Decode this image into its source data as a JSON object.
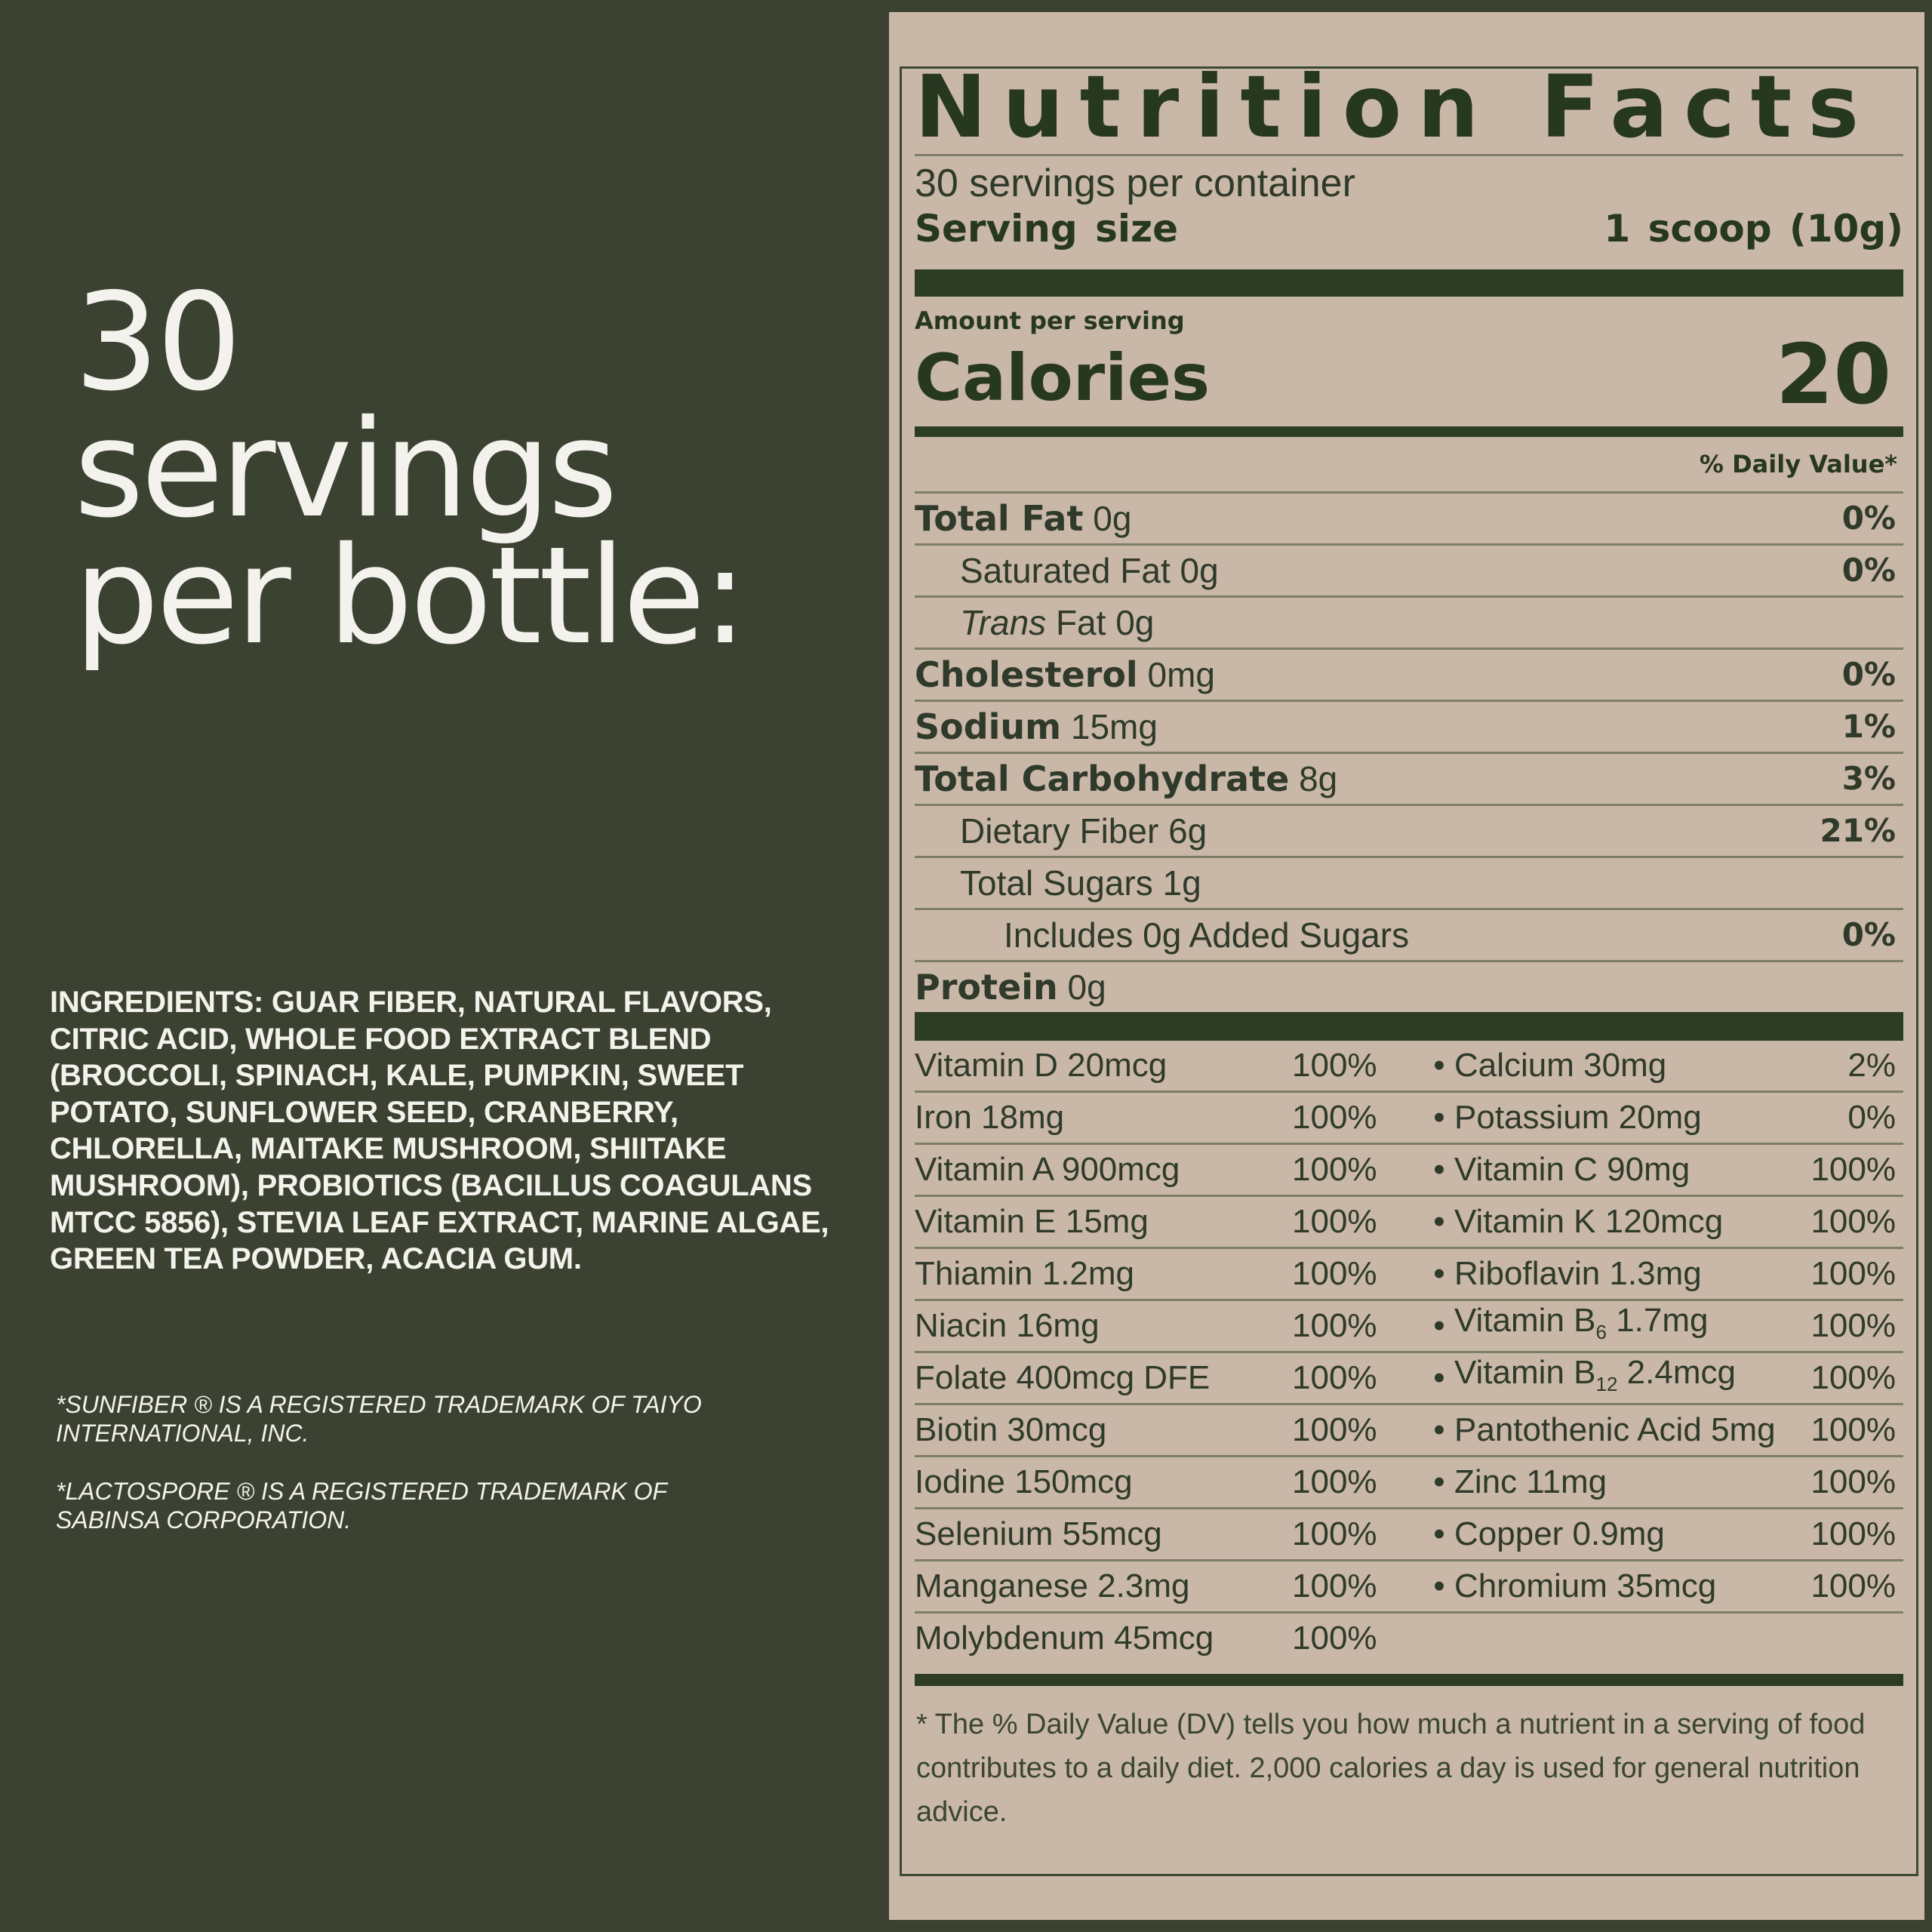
{
  "headline": [
    "30",
    "servings",
    "per bottle:"
  ],
  "ingredients": "INGREDIENTS: GUAR FIBER, NATURAL FLAVORS, CITRIC ACID, WHOLE FOOD EXTRACT BLEND (BROCCOLI, SPINACH, KALE, PUMPKIN, SWEET POTATO, SUNFLOWER SEED, CRANBERRY, CHLORELLA, MAITAKE MUSHROOM, SHIITAKE MUSHROOM), PROBIOTICS (BACILLUS COAGULANS MTCC 5856), STEVIA LEAF EXTRACT, MARINE ALGAE, GREEN TEA POWDER, ACACIA GUM.",
  "trademarks": [
    "*SUNFIBER ® IS A REGISTERED TRADEMARK OF TAIYO INTERNATIONAL, INC.",
    "*LACTOSPORE ® IS A REGISTERED TRADEMARK OF SABINSA CORPORATION."
  ],
  "label": {
    "title": "Nutrition Facts",
    "servings_per_container": "30 servings per container",
    "serving_size_label": "Serving size",
    "serving_size_value": "1 scoop (10g)",
    "amount_per_serving": "Amount per serving",
    "calories_label": "Calories",
    "calories_value": "20",
    "daily_value_header": "% Daily Value*",
    "nutrients": [
      {
        "name": "Total Fat",
        "amount": "0g",
        "dv": "0%"
      },
      {
        "name": "Saturated Fat",
        "amount": "0g",
        "dv": "0%"
      },
      {
        "name": "Trans",
        "name2": "Fat",
        "amount": "0g",
        "dv": ""
      },
      {
        "name": "Cholesterol",
        "amount": "0mg",
        "dv": "0%"
      },
      {
        "name": "Sodium",
        "amount": "15mg",
        "dv": "1%"
      },
      {
        "name": "Total Carbohydrate",
        "amount": "8g",
        "dv": "3%"
      },
      {
        "name": "Dietary Fiber",
        "amount": "6g",
        "dv": "21%"
      },
      {
        "name": "Total Sugars",
        "amount": "1g",
        "dv": ""
      },
      {
        "name": "Includes 0g Added Sugars",
        "amount": "",
        "dv": "0%"
      },
      {
        "name": "Protein",
        "amount": "0g",
        "dv": ""
      }
    ],
    "vitamins": [
      {
        "a": "Vitamin D 20mcg",
        "ap": "100%",
        "b": "Calcium 30mg",
        "bp": "2%"
      },
      {
        "a": "Iron 18mg",
        "ap": "100%",
        "b": "Potassium 20mg",
        "bp": "0%"
      },
      {
        "a": "Vitamin A 900mcg",
        "ap": "100%",
        "b": "Vitamin C 90mg",
        "bp": "100%"
      },
      {
        "a": "Vitamin E 15mg",
        "ap": "100%",
        "b": "Vitamin K 120mcg",
        "bp": "100%"
      },
      {
        "a": "Thiamin 1.2mg",
        "ap": "100%",
        "b": "Riboflavin 1.3mg",
        "bp": "100%"
      },
      {
        "a": "Niacin 16mg",
        "ap": "100%",
        "b_pre": "Vitamin B",
        "b_sub": "6",
        "b_post": " 1.7mg",
        "bp": "100%"
      },
      {
        "a": "Folate 400mcg DFE",
        "ap": "100%",
        "b_pre": "Vitamin B",
        "b_sub": "12",
        "b_post": " 2.4mcg",
        "bp": "100%"
      },
      {
        "a": "Biotin 30mcg",
        "ap": "100%",
        "b": "Pantothenic Acid 5mg",
        "bp": "100%"
      },
      {
        "a": "Iodine 150mcg",
        "ap": "100%",
        "b": "Zinc 11mg",
        "bp": "100%"
      },
      {
        "a": "Selenium 55mcg",
        "ap": "100%",
        "b": "Copper 0.9mg",
        "bp": "100%"
      },
      {
        "a": "Manganese 2.3mg",
        "ap": "100%",
        "b": "Chromium 35mcg",
        "bp": "100%"
      },
      {
        "a": "Molybdenum 45mcg",
        "ap": "100%",
        "b": "",
        "bp": ""
      }
    ],
    "bullet": "•",
    "footnote": "* The % Daily Value (DV) tells you how much a nutrient in a serving of food contributes to a daily diet. 2,000 calories a day is used for general nutrition advice."
  },
  "colors": {
    "background": "#3b4231",
    "panel": "#c9b7a7",
    "ink": "#273821",
    "text_light": "#f3f2ec"
  }
}
